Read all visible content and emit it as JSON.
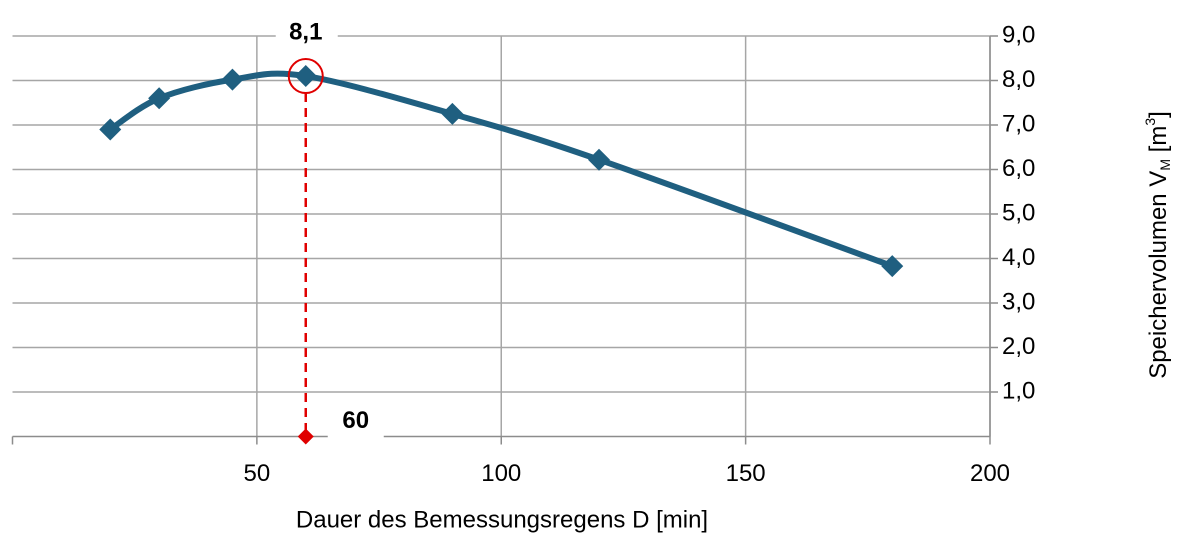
{
  "chart_data": {
    "type": "line",
    "x_label": "Dauer des Bemessungsregens  D [min]",
    "y_label": [
      "Speichervolumen V",
      "M",
      " [m",
      "3",
      "]"
    ],
    "x": [
      20,
      30,
      45,
      60,
      90,
      120,
      180
    ],
    "series": [
      {
        "color": "#1f5f80",
        "values": [
          6.9,
          7.6,
          8.02,
          8.1,
          7.25,
          6.22,
          3.83
        ]
      }
    ],
    "xlim": [
      0,
      200
    ],
    "xticks": [
      50,
      100,
      150,
      200
    ],
    "ylim": [
      0,
      9
    ],
    "yticks": [
      {
        "value": 1,
        "label": "1,0"
      },
      {
        "value": 2,
        "label": "2,0"
      },
      {
        "value": 3,
        "label": "3,0"
      },
      {
        "value": 4,
        "label": "4,0"
      },
      {
        "value": 5,
        "label": "5,0"
      },
      {
        "value": 6,
        "label": "6,0"
      },
      {
        "value": 7,
        "label": "7,0"
      },
      {
        "value": 8,
        "label": "8,0"
      },
      {
        "value": 9,
        "label": "9,0"
      }
    ],
    "grid": true,
    "highlight": {
      "x": 60,
      "y": 8.1,
      "x_text": "60",
      "y_text": "8,1",
      "color": "#e00000"
    }
  }
}
